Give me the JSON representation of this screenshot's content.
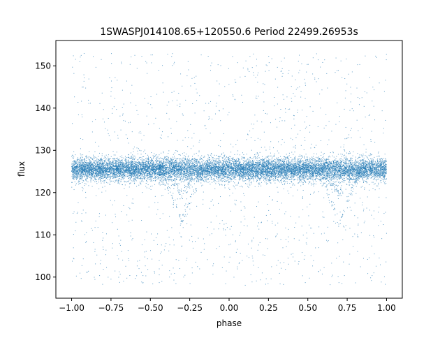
{
  "chart_data": {
    "type": "scatter",
    "title": "1SWASPJ014108.65+120550.6 Period 22499.26953s",
    "xlabel": "phase",
    "ylabel": "flux",
    "xlim": [
      -1.1,
      1.1
    ],
    "ylim": [
      95,
      156
    ],
    "grid": false,
    "legend": "none",
    "x_ticks": [
      -1.0,
      -0.75,
      -0.5,
      -0.25,
      0.0,
      0.25,
      0.5,
      0.75,
      1.0
    ],
    "x_tick_labels": [
      "−1.00",
      "−0.75",
      "−0.50",
      "−0.25",
      "0.00",
      "0.25",
      "0.50",
      "0.75",
      "1.00"
    ],
    "y_ticks": [
      100,
      110,
      120,
      130,
      140,
      150
    ],
    "y_tick_labels": [
      "100",
      "110",
      "120",
      "130",
      "140",
      "150"
    ],
    "point_color": "#1f77b4",
    "series": [
      {
        "baseline_flux": 125.5,
        "baseline_spread": 1.4,
        "eclipse_centers": [
          -0.3,
          0.7
        ],
        "primary_eclipse_min_flux": 112.8,
        "secondary_eclipse_min_flux": 119.8,
        "eclipse_half_width": 0.15,
        "approx_points": 14000
      }
    ]
  }
}
